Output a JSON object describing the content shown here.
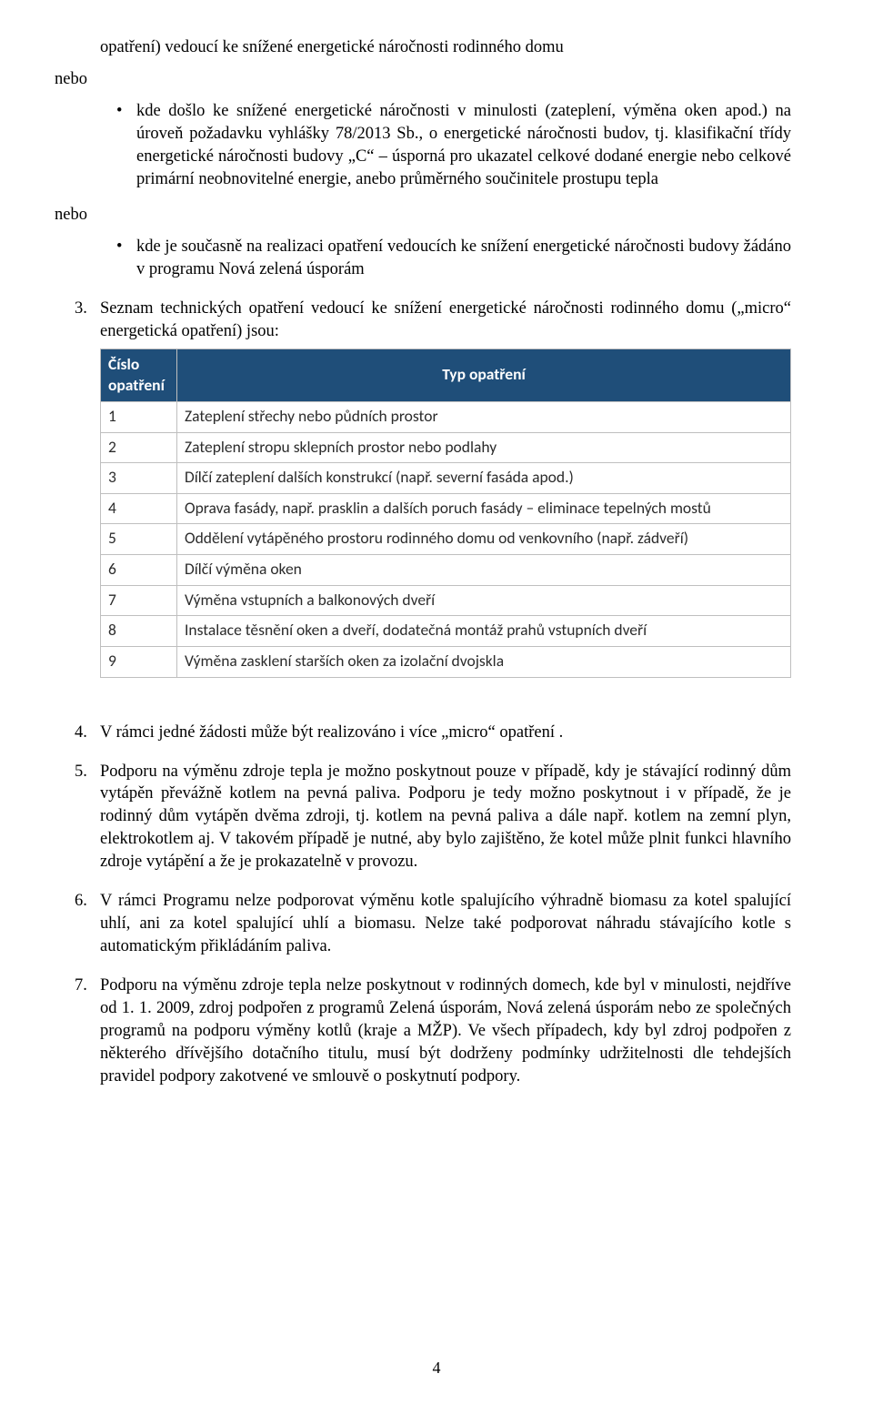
{
  "colors": {
    "table_header_bg": "#1f4e79",
    "table_header_text": "#ffffff",
    "table_border": "#bfbfbf",
    "table_body_text": "#2b2b2b",
    "body_text": "#000000",
    "page_bg": "#ffffff"
  },
  "fonts": {
    "body_family": "Times New Roman",
    "body_size_pt": 12,
    "table_family": "Calibri",
    "table_size_pt": 11
  },
  "intro": {
    "line_top": "opatření) vedoucí ke snížené energetické náročnosti rodinného domu",
    "nebo": "nebo",
    "bullet1": "kde došlo ke snížené energetické náročnosti v minulosti (zateplení, výměna oken apod.) na úroveň požadavku vyhlášky 78/2013 Sb., o energetické náročnosti budov, tj. klasifikační třídy energetické náročnosti budovy „C“ – úsporná pro ukazatel celkové dodané energie nebo celkové primární neobnovitelné energie, anebo průměrného součinitele prostupu tepla",
    "bullet2": "kde je současně na realizaci opatření vedoucích ke snížení energetické náročnosti budovy žádáno v programu Nová zelená úsporám"
  },
  "items": {
    "n3": {
      "num": "3.",
      "text": "Seznam technických opatření vedoucí ke snížení energetické náročnosti rodinného domu („micro“ energetická opatření) jsou:"
    },
    "n4": {
      "num": "4.",
      "text": "V rámci jedné žádosti může být realizováno i více „micro“ opatření ."
    },
    "n5": {
      "num": "5.",
      "text": "Podporu na výměnu zdroje tepla je možno poskytnout pouze v případě, kdy je stávající rodinný dům vytápěn převážně kotlem na pevná paliva. Podporu je tedy možno poskytnout i v případě, že je rodinný dům vytápěn dvěma zdroji, tj. kotlem na pevná paliva a dále např. kotlem na zemní plyn, elektrokotlem aj. V takovém případě je nutné, aby bylo zajištěno, že kotel může plnit funkci hlavního zdroje vytápění a že je prokazatelně v provozu."
    },
    "n6": {
      "num": "6.",
      "text": "V rámci Programu  nelze podporovat výměnu kotle spalujícího výhradně biomasu za kotel spalující uhlí, ani za kotel spalující uhlí a biomasu. Nelze také podporovat náhradu stávajícího kotle s automatickým přikládáním paliva."
    },
    "n7": {
      "num": "7.",
      "text": "Podporu na výměnu zdroje tepla nelze poskytnout v rodinných domech, kde byl v minulosti, nejdříve od 1. 1. 2009, zdroj podpořen z programů Zelená úsporám, Nová zelená úsporám nebo ze společných programů na podporu výměny kotlů (kraje a MŽP). Ve všech případech, kdy byl zdroj podpořen z některého dřívějšího dotačního titulu, musí být dodrženy podmínky udržitelnosti dle tehdejších pravidel podpory zakotvené ve smlouvě o poskytnutí podpory."
    }
  },
  "table": {
    "header_num": "Číslo opatření",
    "header_typ": "Typ opatření",
    "rows": [
      {
        "n": "1",
        "t": "Zateplení střechy nebo půdních prostor"
      },
      {
        "n": "2",
        "t": "Zateplení stropu sklepních prostor nebo podlahy"
      },
      {
        "n": "3",
        "t": "Dílčí zateplení dalších konstrukcí (např. severní fasáda apod.)"
      },
      {
        "n": "4",
        "t": "Oprava fasády, např. prasklin a dalších poruch fasády – eliminace tepelných mostů"
      },
      {
        "n": "5",
        "t": "Oddělení vytápěného prostoru rodinného domu od venkovního (např. zádveří)"
      },
      {
        "n": "6",
        "t": "Dílčí výměna oken"
      },
      {
        "n": "7",
        "t": "Výměna vstupních a balkonových dveří"
      },
      {
        "n": "8",
        "t": "Instalace těsnění oken a dveří, dodatečná montáž prahů vstupních dveří"
      },
      {
        "n": "9",
        "t": "Výměna zasklení starších oken za izolační dvojskla"
      }
    ]
  },
  "page_number": "4"
}
